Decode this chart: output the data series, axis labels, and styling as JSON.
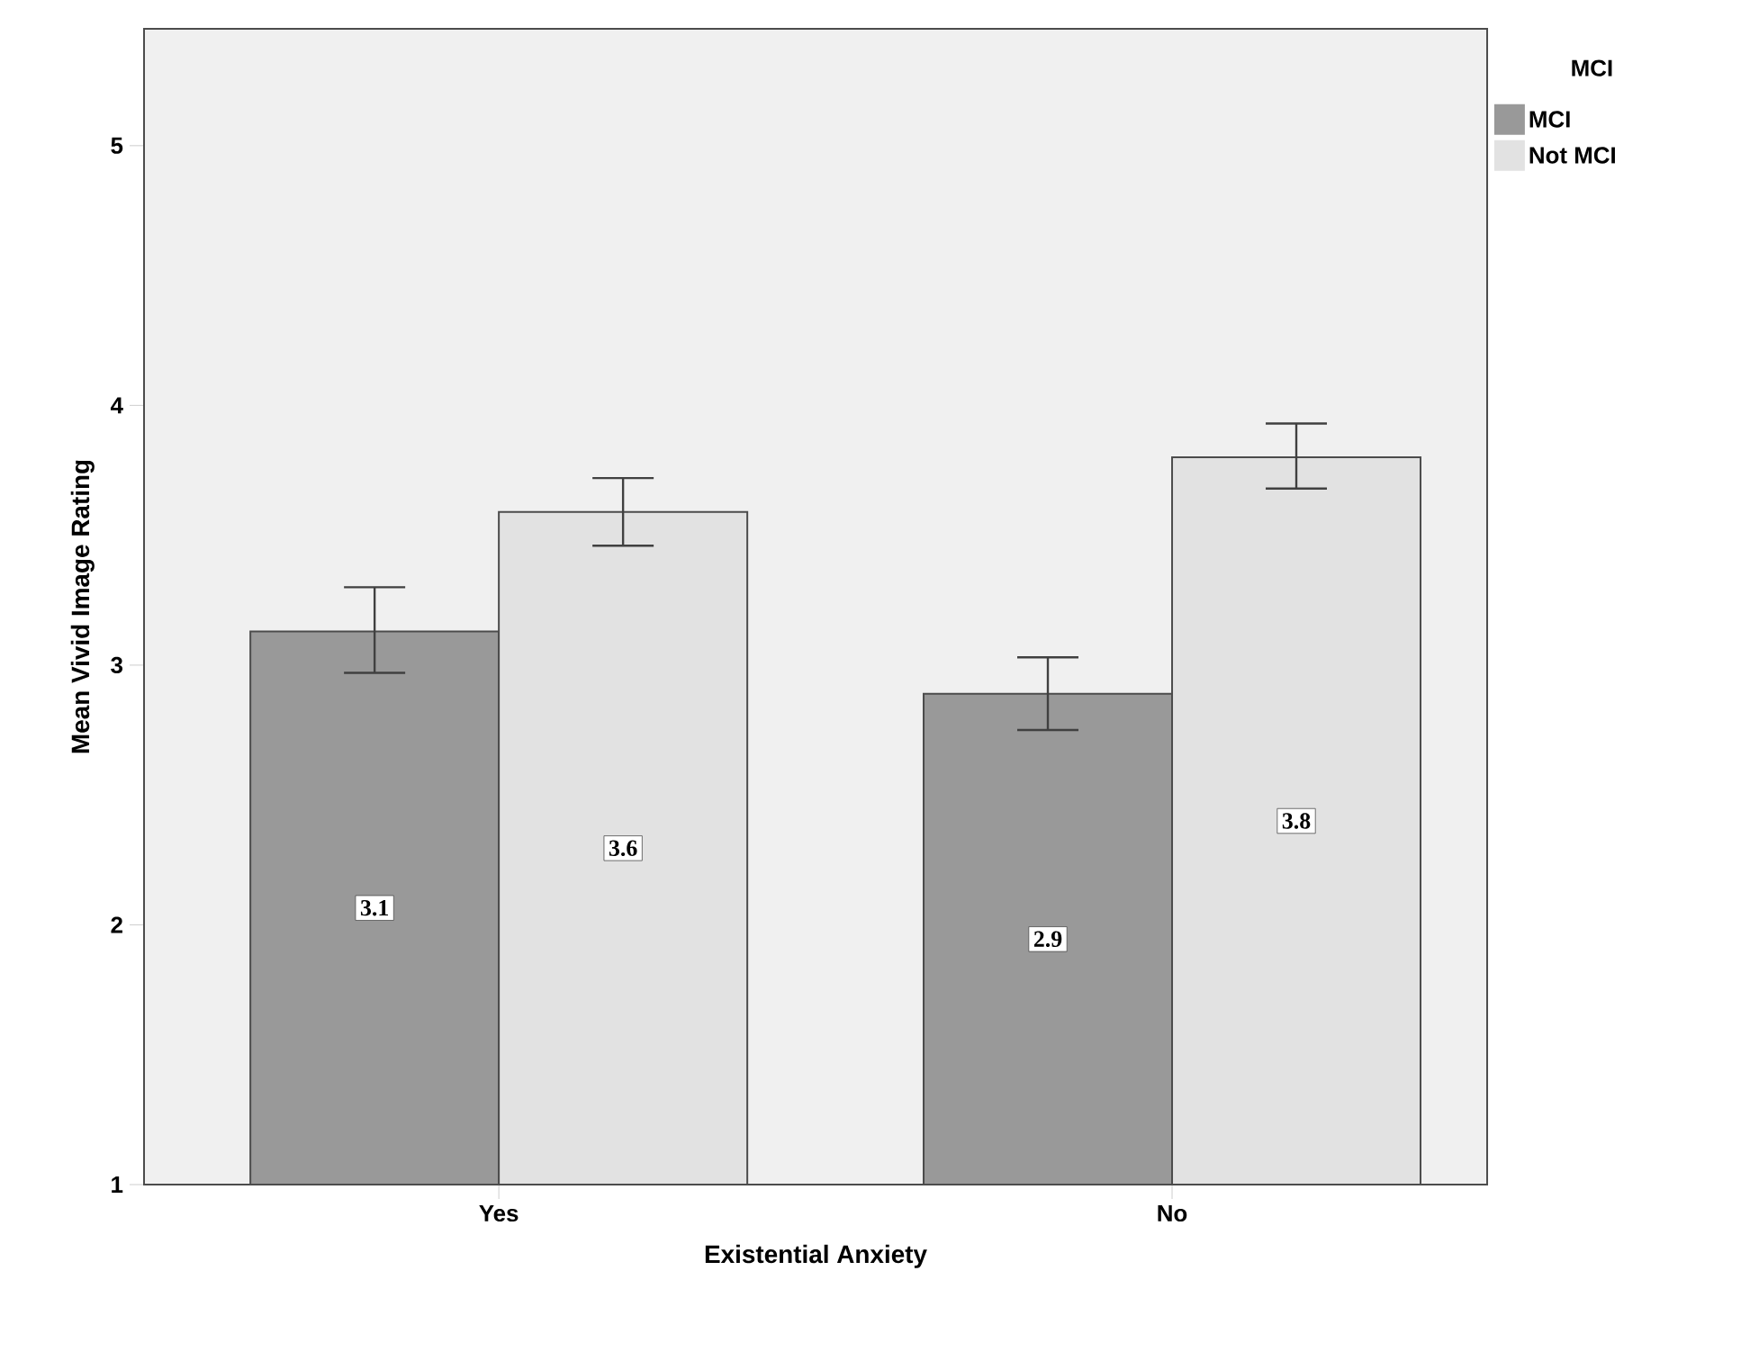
{
  "chart_data": {
    "type": "bar",
    "xlabel": "Existential Anxiety",
    "ylabel": "Mean Vivid Image Rating",
    "legend_title": "MCI",
    "categories": [
      "Yes",
      "No"
    ],
    "series": [
      {
        "name": "MCI",
        "color": "#999999",
        "values": [
          3.13,
          2.89
        ],
        "errors": [
          [
            2.97,
            3.3
          ],
          [
            2.75,
            3.03
          ]
        ],
        "value_labels": [
          "3.1",
          "2.9"
        ]
      },
      {
        "name": "Not MCI",
        "color": "#e2e2e2",
        "values": [
          3.59,
          3.8
        ],
        "errors": [
          [
            3.46,
            3.72
          ],
          [
            3.68,
            3.93
          ]
        ],
        "value_labels": [
          "3.6",
          "3.8"
        ]
      }
    ],
    "ylim": [
      1,
      5.45
    ],
    "yticks": [
      1,
      2,
      3,
      4,
      5
    ],
    "grid": false,
    "legend": "top right"
  }
}
